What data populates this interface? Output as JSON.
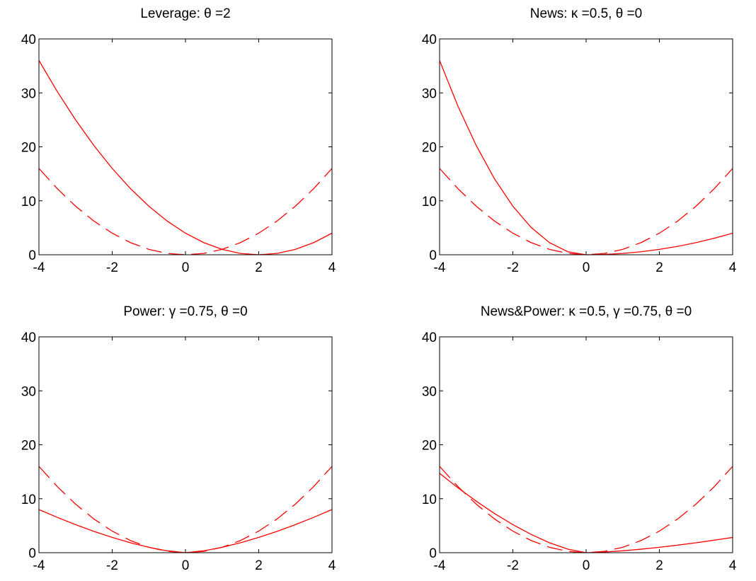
{
  "chart_data": [
    {
      "type": "line",
      "title": "Leverage: θ =2",
      "x": [
        -4,
        -3.5,
        -3,
        -2.5,
        -2,
        -1.5,
        -1,
        -0.5,
        0,
        0.5,
        1,
        1.5,
        2,
        2.5,
        3,
        3.5,
        4
      ],
      "series": [
        {
          "color": "#ff0000",
          "style": "solid",
          "values": [
            36,
            30.25,
            25,
            20.25,
            16,
            12.25,
            9,
            6.25,
            4,
            2.25,
            1,
            0.25,
            0,
            0.25,
            1,
            2.25,
            4
          ]
        },
        {
          "color": "#ff0000",
          "style": "dashed",
          "values": [
            16,
            12.25,
            9,
            6.25,
            4,
            2.25,
            1,
            0.25,
            0,
            0.25,
            1,
            2.25,
            4,
            6.25,
            9,
            12.25,
            16
          ]
        }
      ],
      "xlim": [
        -4,
        4
      ],
      "xticks": [
        -4,
        -2,
        0,
        2,
        4
      ],
      "ylim": [
        0,
        40
      ],
      "yticks": [
        0,
        10,
        20,
        30,
        40
      ]
    },
    {
      "type": "line",
      "title": "News: κ =0.5, θ =0",
      "x": [
        -4,
        -3.5,
        -3,
        -2.5,
        -2,
        -1.5,
        -1,
        -0.5,
        0,
        0.5,
        1,
        1.5,
        2,
        2.5,
        3,
        3.5,
        4
      ],
      "series": [
        {
          "color": "#ff0000",
          "style": "solid",
          "values": [
            36,
            27.56,
            20.25,
            14.06,
            9,
            5.06,
            2.25,
            0.56,
            0,
            0.06,
            0.25,
            0.56,
            1,
            1.56,
            2.25,
            3.06,
            4
          ]
        },
        {
          "color": "#ff0000",
          "style": "dashed",
          "values": [
            16,
            12.25,
            9,
            6.25,
            4,
            2.25,
            1,
            0.25,
            0,
            0.25,
            1,
            2.25,
            4,
            6.25,
            9,
            12.25,
            16
          ]
        }
      ],
      "xlim": [
        -4,
        4
      ],
      "xticks": [
        -4,
        -2,
        0,
        2,
        4
      ],
      "ylim": [
        0,
        40
      ],
      "yticks": [
        0,
        10,
        20,
        30,
        40
      ]
    },
    {
      "type": "line",
      "title": "Power: γ =0.75, θ =0",
      "x": [
        -4,
        -3.5,
        -3,
        -2.5,
        -2,
        -1.5,
        -1,
        -0.5,
        0,
        0.5,
        1,
        1.5,
        2,
        2.5,
        3,
        3.5,
        4
      ],
      "series": [
        {
          "color": "#ff0000",
          "style": "solid",
          "values": [
            8,
            6.55,
            5.2,
            3.95,
            2.83,
            1.84,
            1,
            0.35,
            0,
            0.35,
            1,
            1.84,
            2.83,
            3.95,
            5.2,
            6.55,
            8
          ]
        },
        {
          "color": "#ff0000",
          "style": "dashed",
          "values": [
            16,
            12.25,
            9,
            6.25,
            4,
            2.25,
            1,
            0.25,
            0,
            0.25,
            1,
            2.25,
            4,
            6.25,
            9,
            12.25,
            16
          ]
        }
      ],
      "xlim": [
        -4,
        4
      ],
      "xticks": [
        -4,
        -2,
        0,
        2,
        4
      ],
      "ylim": [
        0,
        40
      ],
      "yticks": [
        0,
        10,
        20,
        30,
        40
      ]
    },
    {
      "type": "line",
      "title": "News&Power: κ =0.5, γ =0.75, θ =0",
      "x": [
        -4,
        -3.5,
        -3,
        -2.5,
        -2,
        -1.5,
        -1,
        -0.5,
        0,
        0.5,
        1,
        1.5,
        2,
        2.5,
        3,
        3.5,
        4
      ],
      "series": [
        {
          "color": "#ff0000",
          "style": "solid",
          "values": [
            14.7,
            12.03,
            9.55,
            7.26,
            5.2,
            3.38,
            1.84,
            0.65,
            0,
            0.13,
            0.35,
            0.65,
            1,
            1.4,
            1.84,
            2.32,
            2.83
          ]
        },
        {
          "color": "#ff0000",
          "style": "dashed",
          "values": [
            16,
            12.25,
            9,
            6.25,
            4,
            2.25,
            1,
            0.25,
            0,
            0.25,
            1,
            2.25,
            4,
            6.25,
            9,
            12.25,
            16
          ]
        }
      ],
      "xlim": [
        -4,
        4
      ],
      "xticks": [
        -4,
        -2,
        0,
        2,
        4
      ],
      "ylim": [
        0,
        40
      ],
      "yticks": [
        0,
        10,
        20,
        30,
        40
      ]
    }
  ]
}
